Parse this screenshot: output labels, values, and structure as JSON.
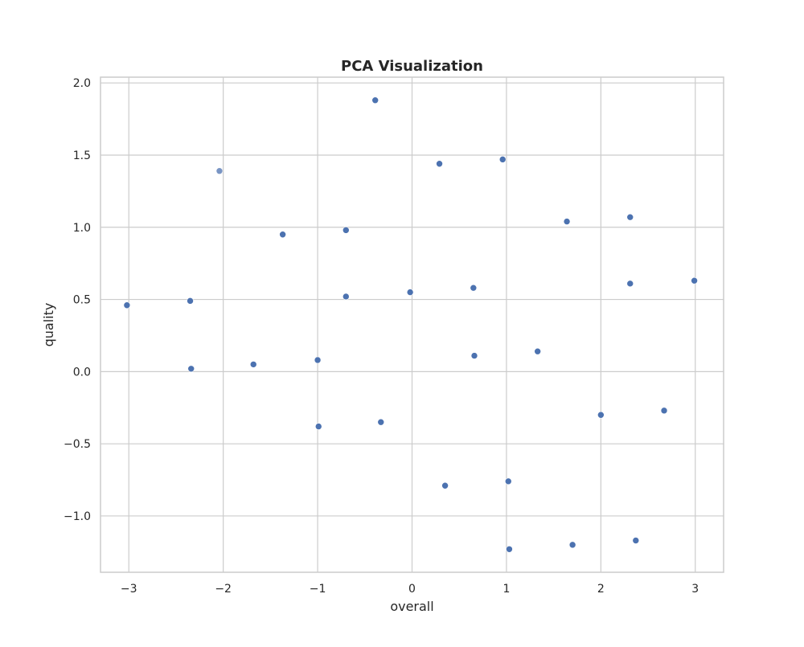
{
  "chart_data": {
    "type": "scatter",
    "title": "PCA Visualization",
    "xlabel": "overall",
    "ylabel": "quality",
    "xlim": [
      -3.3,
      3.3
    ],
    "ylim": [
      -1.39,
      2.04
    ],
    "xticks": [
      -3,
      -2,
      -1,
      0,
      1,
      2,
      3
    ],
    "xtick_labels": [
      "−3",
      "−2",
      "−1",
      "0",
      "1",
      "2",
      "3"
    ],
    "yticks": [
      -1.0,
      -0.5,
      0.0,
      0.5,
      1.0,
      1.5,
      2.0
    ],
    "ytick_labels": [
      "−1.0",
      "−0.5",
      "0.0",
      "0.5",
      "1.0",
      "1.5",
      "2.0"
    ],
    "grid": true,
    "marker_color": "#4c72b0",
    "points": [
      {
        "x": -0.39,
        "y": 1.88
      },
      {
        "x": 0.29,
        "y": 1.44
      },
      {
        "x": 0.96,
        "y": 1.47
      },
      {
        "x": -2.04,
        "y": 1.39,
        "alpha": 0.75
      },
      {
        "x": -1.37,
        "y": 0.95
      },
      {
        "x": -0.7,
        "y": 0.98
      },
      {
        "x": 1.64,
        "y": 1.04
      },
      {
        "x": 2.31,
        "y": 1.07
      },
      {
        "x": -3.02,
        "y": 0.46
      },
      {
        "x": -2.35,
        "y": 0.49
      },
      {
        "x": -0.7,
        "y": 0.52
      },
      {
        "x": -0.02,
        "y": 0.55
      },
      {
        "x": 0.65,
        "y": 0.58
      },
      {
        "x": 2.31,
        "y": 0.61
      },
      {
        "x": 2.99,
        "y": 0.63
      },
      {
        "x": -2.34,
        "y": 0.02
      },
      {
        "x": -1.68,
        "y": 0.05
      },
      {
        "x": -1.0,
        "y": 0.08
      },
      {
        "x": 0.66,
        "y": 0.11
      },
      {
        "x": 1.33,
        "y": 0.14
      },
      {
        "x": -0.99,
        "y": -0.38
      },
      {
        "x": -0.33,
        "y": -0.35
      },
      {
        "x": 2.0,
        "y": -0.3
      },
      {
        "x": 2.67,
        "y": -0.27
      },
      {
        "x": 0.35,
        "y": -0.79
      },
      {
        "x": 1.02,
        "y": -0.76
      },
      {
        "x": 1.03,
        "y": -1.23
      },
      {
        "x": 1.7,
        "y": -1.2
      },
      {
        "x": 2.37,
        "y": -1.17
      }
    ]
  }
}
